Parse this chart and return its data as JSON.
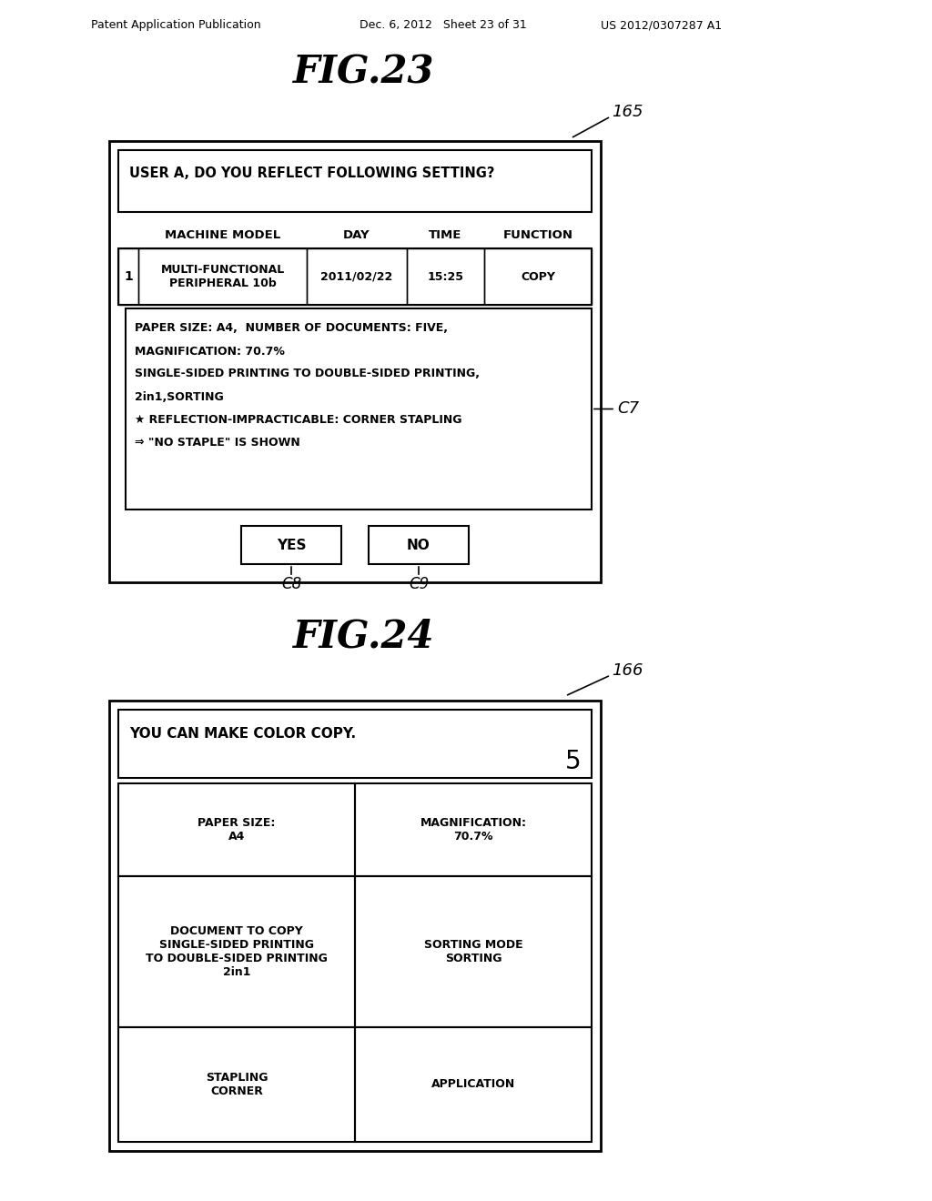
{
  "bg_color": "#ffffff",
  "header_left": "Patent Application Publication",
  "header_mid": "Dec. 6, 2012   Sheet 23 of 31",
  "header_right": "US 2012/0307287 A1",
  "fig23_title": "FIG.23",
  "fig24_title": "FIG.24",
  "label_165": "165",
  "label_166": "166",
  "label_C7": "C7",
  "label_C8": "C8",
  "label_C9": "C9",
  "fig23_header": "USER A, DO YOU REFLECT FOLLOWING SETTING?",
  "fig23_col_headers": [
    "MACHINE MODEL",
    "DAY",
    "TIME",
    "FUNCTION"
  ],
  "fig23_row_num": "1",
  "fig23_row_model": "MULTI-FUNCTIONAL\nPERIPHERAL 10b",
  "fig23_row_day": "2011/02/22",
  "fig23_row_time": "15:25",
  "fig23_row_func": "COPY",
  "fig23_detail_line1": "PAPER SIZE: A4,  NUMBER OF DOCUMENTS: FIVE,",
  "fig23_detail_line2": "MAGNIFICATION: 70.7%",
  "fig23_detail_line3": "SINGLE-SIDED PRINTING TO DOUBLE-SIDED PRINTING,",
  "fig23_detail_line4": "2in1,SORTING",
  "fig23_detail_line5": "★ REFLECTION-IMPRACTICABLE: CORNER STAPLING",
  "fig23_detail_line6": "⇒ \"NO STAPLE\" IS SHOWN",
  "fig23_yes": "YES",
  "fig23_no": "NO",
  "fig24_line1": "YOU CAN MAKE COLOR COPY.",
  "fig24_num": "5",
  "fig24_cell_00": "PAPER SIZE:\nA4",
  "fig24_cell_01": "MAGNIFICATION:\n70.7%",
  "fig24_cell_10": "DOCUMENT TO COPY\nSINGLE-SIDED PRINTING\nTO DOUBLE-SIDED PRINTING\n2in1",
  "fig24_cell_11": "SORTING MODE\nSORTING",
  "fig24_cell_20": "STAPLING\nCORNER",
  "fig24_cell_21": "APPLICATION"
}
